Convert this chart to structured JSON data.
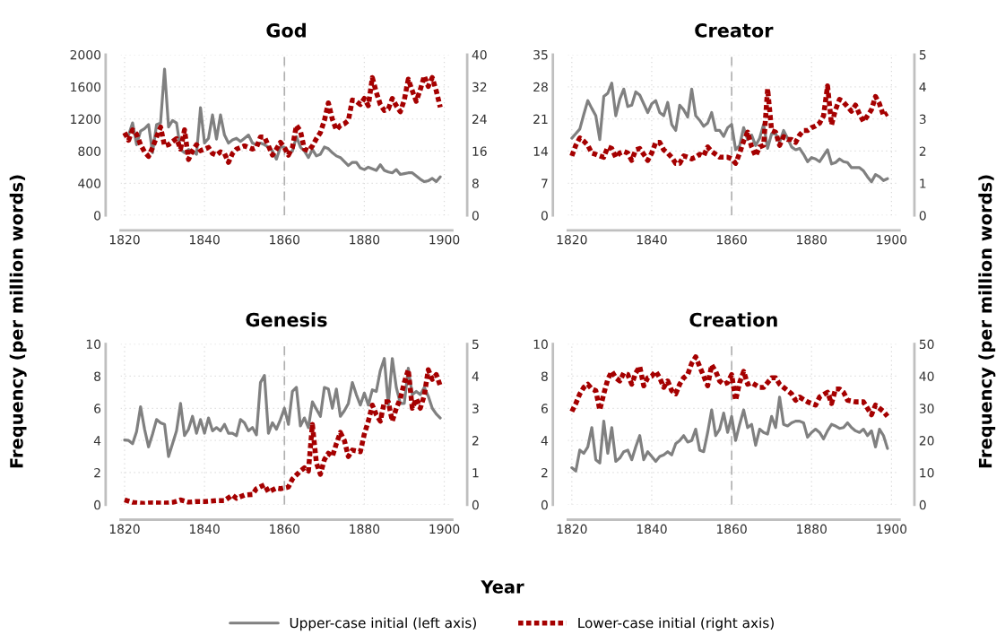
{
  "chart_data": [
    {
      "type": "line",
      "title": "God",
      "ylabel": "Frequency (per million words)",
      "legend": "bottom",
      "grid": true,
      "x": [
        1820,
        1821,
        1822,
        1823,
        1824,
        1825,
        1826,
        1827,
        1828,
        1829,
        1830,
        1831,
        1832,
        1833,
        1834,
        1835,
        1836,
        1837,
        1838,
        1839,
        1840,
        1841,
        1842,
        1843,
        1844,
        1845,
        1846,
        1847,
        1848,
        1849,
        1850,
        1851,
        1852,
        1853,
        1854,
        1855,
        1856,
        1857,
        1858,
        1859,
        1860,
        1861,
        1862,
        1863,
        1864,
        1865,
        1866,
        1867,
        1868,
        1869,
        1870,
        1871,
        1872,
        1873,
        1874,
        1875,
        1876,
        1877,
        1878,
        1879,
        1880,
        1881,
        1882,
        1883,
        1884,
        1885,
        1886,
        1887,
        1888,
        1889,
        1890,
        1891,
        1892,
        1893,
        1894,
        1895,
        1896,
        1897,
        1898,
        1899
      ],
      "xlim": [
        1819,
        1902
      ],
      "xticks": [
        1820,
        1840,
        1860,
        1880,
        1900
      ],
      "ylim": [
        0,
        2000
      ],
      "yticks": [
        0,
        400,
        800,
        1200,
        1600,
        2000
      ],
      "y2lim": [
        0,
        40
      ],
      "y2ticks": [
        0,
        8,
        16,
        24,
        32,
        40
      ],
      "ref_lines": [
        {
          "axis": "x",
          "value": 1860,
          "color": "#b0b0b0",
          "line_style": "dashed"
        }
      ],
      "series": [
        {
          "name": "Upper-case initial (left axis)",
          "color": "#808080",
          "line_style": "solid",
          "values": [
            1000,
            1000,
            1150,
            880,
            1050,
            1080,
            1130,
            780,
            1130,
            1150,
            1820,
            1100,
            1180,
            1150,
            820,
            780,
            820,
            800,
            760,
            1340,
            900,
            960,
            1250,
            950,
            1250,
            1000,
            900,
            940,
            960,
            920,
            960,
            1000,
            900,
            880,
            900,
            880,
            850,
            800,
            700,
            850,
            850,
            780,
            800,
            980,
            850,
            800,
            720,
            820,
            740,
            760,
            850,
            830,
            780,
            740,
            720,
            670,
            620,
            660,
            660,
            590,
            570,
            600,
            580,
            560,
            630,
            560,
            540,
            530,
            570,
            510,
            520,
            530,
            530,
            490,
            450,
            420,
            430,
            460,
            420,
            480
          ]
        },
        {
          "name": "Lower-case initial (right axis)",
          "color": "#a50000",
          "line_style": "dotted",
          "axis": "y2",
          "values": [
            20.6,
            18.7,
            21.3,
            20.2,
            17.6,
            15.8,
            14.7,
            16.9,
            19.5,
            22,
            17.3,
            17.6,
            18.4,
            19.1,
            16.5,
            21.3,
            13.9,
            16.1,
            17.6,
            16.1,
            16.5,
            16.9,
            15.4,
            15,
            15.8,
            15.4,
            13.2,
            15.4,
            16.5,
            16.9,
            17.3,
            16.9,
            16.5,
            16.9,
            19.5,
            19.5,
            17.3,
            15,
            16.5,
            18.2,
            16.9,
            15,
            16.9,
            22.4,
            21,
            16.5,
            16.1,
            17.3,
            19.1,
            20.6,
            23.6,
            28,
            23.9,
            21.3,
            22.4,
            22.8,
            23.6,
            28.7,
            28.4,
            27.6,
            29.1,
            27.3,
            34.3,
            30.6,
            27.6,
            26.1,
            26.5,
            29.1,
            27.3,
            25.8,
            28.7,
            33.9,
            31,
            28.4,
            31.3,
            34.7,
            32.1,
            34.3,
            31,
            26.9
          ]
        }
      ]
    },
    {
      "type": "line",
      "title": "Creator",
      "y2label": "Frequency (per million words)",
      "grid": true,
      "x": [
        1820,
        1821,
        1822,
        1823,
        1824,
        1825,
        1826,
        1827,
        1828,
        1829,
        1830,
        1831,
        1832,
        1833,
        1834,
        1835,
        1836,
        1837,
        1838,
        1839,
        1840,
        1841,
        1842,
        1843,
        1844,
        1845,
        1846,
        1847,
        1848,
        1849,
        1850,
        1851,
        1852,
        1853,
        1854,
        1855,
        1856,
        1857,
        1858,
        1859,
        1860,
        1861,
        1862,
        1863,
        1864,
        1865,
        1866,
        1867,
        1868,
        1869,
        1870,
        1871,
        1872,
        1873,
        1874,
        1875,
        1876,
        1877,
        1878,
        1879,
        1880,
        1881,
        1882,
        1883,
        1884,
        1885,
        1886,
        1887,
        1888,
        1889,
        1890,
        1891,
        1892,
        1893,
        1894,
        1895,
        1896,
        1897,
        1898,
        1899
      ],
      "xlim": [
        1819,
        1902
      ],
      "xticks": [
        1820,
        1840,
        1860,
        1880,
        1900
      ],
      "ylim": [
        0,
        35
      ],
      "yticks": [
        0,
        7,
        14,
        21,
        28,
        35
      ],
      "y2lim": [
        0,
        5
      ],
      "y2ticks": [
        0,
        1,
        2,
        3,
        4,
        5
      ],
      "ref_lines": [
        {
          "axis": "x",
          "value": 1860,
          "color": "#b0b0b0",
          "line_style": "dashed"
        }
      ],
      "series": [
        {
          "name": "Upper-case initial (left axis)",
          "color": "#808080",
          "line_style": "solid",
          "values": [
            16.8,
            17.8,
            18.8,
            22,
            25,
            23.3,
            21.7,
            16.5,
            25.9,
            26.6,
            28.8,
            21.7,
            25.3,
            27.5,
            23.7,
            24,
            26.9,
            26.2,
            24.3,
            22.4,
            24.3,
            25,
            22.4,
            21.7,
            24.6,
            19.8,
            18.5,
            24,
            23,
            21.4,
            27.5,
            21.7,
            20.7,
            19.4,
            20.1,
            22.4,
            18.5,
            18.5,
            17.2,
            19.1,
            19.8,
            14.3,
            15.2,
            19.1,
            16.5,
            17.5,
            15.2,
            16.8,
            19.8,
            14.6,
            17.8,
            17.8,
            15.9,
            18.5,
            16.8,
            14.9,
            14.3,
            14.6,
            13.3,
            11.7,
            12.6,
            12.3,
            11.7,
            13,
            14.3,
            11.2,
            11.5,
            12.3,
            11.7,
            11.5,
            10.4,
            10.4,
            10.4,
            9.7,
            8.4,
            7.3,
            8.9,
            8.4,
            7.6,
            8
          ]
        },
        {
          "name": "Lower-case initial (right axis)",
          "color": "#a50000",
          "line_style": "dotted",
          "axis": "y2",
          "values": [
            1.85,
            2.18,
            2.41,
            2.31,
            2.18,
            1.94,
            1.9,
            1.85,
            1.81,
            2.13,
            2.08,
            1.81,
            1.94,
            1.99,
            1.94,
            1.71,
            2.04,
            2.08,
            1.9,
            1.71,
            1.94,
            2.27,
            2.27,
            2.04,
            1.94,
            1.81,
            1.62,
            1.62,
            1.85,
            1.81,
            1.76,
            1.81,
            1.9,
            1.85,
            2.13,
            1.99,
            1.9,
            1.81,
            1.81,
            1.81,
            1.76,
            1.62,
            1.94,
            2.31,
            2.59,
            2.13,
            1.85,
            2.13,
            2.18,
            3.94,
            2.64,
            2.59,
            2.18,
            2.45,
            2.36,
            2.36,
            2.27,
            2.5,
            2.64,
            2.64,
            2.73,
            2.78,
            2.87,
            3.1,
            4.03,
            2.82,
            3.29,
            3.61,
            3.52,
            3.38,
            3.24,
            3.43,
            3.15,
            2.92,
            3.1,
            3.29,
            3.7,
            3.47,
            3.1,
            3.18
          ]
        }
      ]
    },
    {
      "type": "line",
      "title": "Genesis",
      "xlabel": "Year",
      "grid": true,
      "x": [
        1820,
        1821,
        1822,
        1823,
        1824,
        1825,
        1826,
        1827,
        1828,
        1829,
        1830,
        1831,
        1832,
        1833,
        1834,
        1835,
        1836,
        1837,
        1838,
        1839,
        1840,
        1841,
        1842,
        1843,
        1844,
        1845,
        1846,
        1847,
        1848,
        1849,
        1850,
        1851,
        1852,
        1853,
        1854,
        1855,
        1856,
        1857,
        1858,
        1859,
        1860,
        1861,
        1862,
        1863,
        1864,
        1865,
        1866,
        1867,
        1868,
        1869,
        1870,
        1871,
        1872,
        1873,
        1874,
        1875,
        1876,
        1877,
        1878,
        1879,
        1880,
        1881,
        1882,
        1883,
        1884,
        1885,
        1886,
        1887,
        1888,
        1889,
        1890,
        1891,
        1892,
        1893,
        1894,
        1895,
        1896,
        1897,
        1898,
        1899
      ],
      "xlim": [
        1819,
        1902
      ],
      "xticks": [
        1820,
        1840,
        1860,
        1880,
        1900
      ],
      "ylim": [
        0,
        10
      ],
      "yticks": [
        0,
        2,
        4,
        6,
        8,
        10
      ],
      "y2lim": [
        0,
        5
      ],
      "y2ticks": [
        0,
        1,
        2,
        3,
        4,
        5
      ],
      "ref_lines": [
        {
          "axis": "x",
          "value": 1860,
          "color": "#b0b0b0",
          "line_style": "dashed"
        }
      ],
      "series": [
        {
          "name": "Upper-case initial (left axis)",
          "color": "#808080",
          "line_style": "solid",
          "values": [
            4.03,
            4,
            3.8,
            4.55,
            6.1,
            4.7,
            3.6,
            4.4,
            5.3,
            5.1,
            5,
            3,
            3.8,
            4.6,
            6.3,
            4.3,
            4.7,
            5.5,
            4.45,
            5.3,
            4.45,
            5.4,
            4.6,
            4.8,
            4.6,
            5,
            4.45,
            4.45,
            4.3,
            5.3,
            5.1,
            4.6,
            4.8,
            4.35,
            7.6,
            8.05,
            4.45,
            5.1,
            4.7,
            5.3,
            6,
            5,
            7.05,
            7.3,
            4.9,
            5.4,
            4.8,
            6.4,
            5.95,
            5.5,
            7.3,
            7.2,
            6,
            7.2,
            5.5,
            5.85,
            6.3,
            7.6,
            6.85,
            6.2,
            6.95,
            6.2,
            7.15,
            7.05,
            8.35,
            9.1,
            6.2,
            9.1,
            7.3,
            6.3,
            6.3,
            8.5,
            6.85,
            7.05,
            6.85,
            7.3,
            6.75,
            6,
            5.65,
            5.4
          ]
        },
        {
          "name": "Lower-case initial (right axis)",
          "color": "#a50000",
          "line_style": "dotted",
          "axis": "y2",
          "x": [
            1820,
            1822,
            1825,
            1827,
            1830,
            1832,
            1834,
            1836,
            1838,
            1840,
            1843,
            1845,
            1847,
            1848,
            1850,
            1852,
            1853,
            1855,
            1856,
            1858,
            1859,
            1861,
            1862,
            1864,
            1865,
            1866,
            1867,
            1868,
            1869,
            1870,
            1871,
            1872,
            1873,
            1874,
            1875,
            1876,
            1877,
            1879,
            1880,
            1881,
            1882,
            1883,
            1884,
            1885,
            1886,
            1887,
            1888,
            1889,
            1890,
            1891,
            1892,
            1893,
            1894,
            1895,
            1896,
            1897,
            1898,
            1899
          ],
          "values": [
            0.15,
            0.07,
            0.04,
            0.06,
            0.05,
            0.07,
            0.15,
            0.08,
            0.1,
            0.1,
            0.13,
            0.13,
            0.3,
            0.2,
            0.3,
            0.32,
            0.5,
            0.62,
            0.4,
            0.52,
            0.5,
            0.55,
            0.8,
            1.05,
            1.15,
            1.05,
            2.5,
            1.3,
            0.95,
            1.4,
            1.6,
            1.5,
            1.9,
            2.25,
            2,
            1.5,
            1.7,
            1.65,
            2.2,
            2.6,
            3.1,
            2.8,
            2.6,
            3.2,
            3.2,
            2.6,
            3,
            3.3,
            3.8,
            4.2,
            3,
            3.3,
            3,
            3.4,
            4.2,
            3.9,
            4.05,
            3.7
          ]
        }
      ]
    },
    {
      "type": "line",
      "title": "Creation",
      "grid": true,
      "x": [
        1820,
        1821,
        1822,
        1823,
        1824,
        1825,
        1826,
        1827,
        1828,
        1829,
        1830,
        1831,
        1832,
        1833,
        1834,
        1835,
        1836,
        1837,
        1838,
        1839,
        1840,
        1841,
        1842,
        1843,
        1844,
        1845,
        1846,
        1847,
        1848,
        1849,
        1850,
        1851,
        1852,
        1853,
        1854,
        1855,
        1856,
        1857,
        1858,
        1859,
        1860,
        1861,
        1862,
        1863,
        1864,
        1865,
        1866,
        1867,
        1868,
        1869,
        1870,
        1871,
        1872,
        1873,
        1874,
        1875,
        1876,
        1877,
        1878,
        1879,
        1880,
        1881,
        1882,
        1883,
        1884,
        1885,
        1886,
        1887,
        1888,
        1889,
        1890,
        1891,
        1892,
        1893,
        1894,
        1895,
        1896,
        1897,
        1898,
        1899
      ],
      "xlim": [
        1819,
        1902
      ],
      "xticks": [
        1820,
        1840,
        1860,
        1880,
        1900
      ],
      "ylim": [
        0,
        10
      ],
      "yticks": [
        0,
        2,
        4,
        6,
        8,
        10
      ],
      "y2lim": [
        0,
        50
      ],
      "y2ticks": [
        0,
        10,
        20,
        30,
        40,
        50
      ],
      "ref_lines": [
        {
          "axis": "x",
          "value": 1860,
          "color": "#b0b0b0",
          "line_style": "dashed"
        }
      ],
      "series": [
        {
          "name": "Upper-case initial (left axis)",
          "color": "#808080",
          "line_style": "solid",
          "values": [
            2.3,
            2.1,
            3.4,
            3.2,
            3.6,
            4.8,
            2.8,
            2.6,
            5.2,
            3.2,
            4.8,
            2.7,
            2.9,
            3.3,
            3.4,
            2.8,
            3.6,
            4.3,
            2.8,
            3.3,
            3,
            2.7,
            3,
            3.1,
            3.3,
            3.1,
            3.8,
            4,
            4.3,
            3.9,
            4,
            4.7,
            3.4,
            3.3,
            4.5,
            5.9,
            4.3,
            4.7,
            5.7,
            4.5,
            5.5,
            4,
            5,
            5.9,
            4.8,
            5,
            3.7,
            4.7,
            4.5,
            4.4,
            5.5,
            4.8,
            6.7,
            5,
            4.9,
            5.1,
            5.2,
            5.2,
            5.1,
            4.2,
            4.5,
            4.7,
            4.5,
            4.1,
            4.6,
            5,
            4.9,
            4.75,
            4.8,
            5.1,
            4.8,
            4.6,
            4.5,
            4.7,
            4.3,
            4.6,
            3.6,
            4.7,
            4.3,
            3.5
          ]
        },
        {
          "name": "Lower-case initial (right axis)",
          "color": "#a50000",
          "line_style": "dotted",
          "axis": "y2",
          "x": [
            1820,
            1821,
            1822,
            1823,
            1824,
            1825,
            1826,
            1827,
            1828,
            1829,
            1830,
            1831,
            1832,
            1833,
            1834,
            1835,
            1836,
            1837,
            1838,
            1839,
            1840,
            1841,
            1842,
            1843,
            1844,
            1845,
            1846,
            1847,
            1848,
            1849,
            1850,
            1851,
            1852,
            1853,
            1854,
            1855,
            1856,
            1857,
            1858,
            1859,
            1860,
            1861,
            1862,
            1863,
            1864,
            1865,
            1867,
            1868,
            1870,
            1871,
            1872,
            1873,
            1875,
            1876,
            1877,
            1879,
            1881,
            1882,
            1884,
            1885,
            1886,
            1887,
            1888,
            1889,
            1891,
            1893,
            1895,
            1896,
            1898,
            1899
          ],
          "values": [
            29,
            31.5,
            34.5,
            36.5,
            37.5,
            36,
            35.5,
            29.5,
            34.5,
            39,
            41.5,
            39.5,
            38.5,
            41,
            40.5,
            37.5,
            41,
            43,
            37,
            39.5,
            40,
            41.5,
            39.5,
            36.5,
            38.5,
            35.5,
            34.5,
            37.5,
            39.5,
            40.5,
            44,
            46,
            43,
            40,
            37,
            43.5,
            41.5,
            38.5,
            37.5,
            38,
            40.5,
            32.5,
            38,
            41.5,
            37.5,
            38,
            36.5,
            36.5,
            39.5,
            39.5,
            37.5,
            36.5,
            34.5,
            32.5,
            33.5,
            32,
            31,
            33.5,
            35,
            31.5,
            36,
            36,
            35,
            32.5,
            32,
            32,
            28,
            31,
            29,
            27.5
          ]
        }
      ]
    }
  ]
}
